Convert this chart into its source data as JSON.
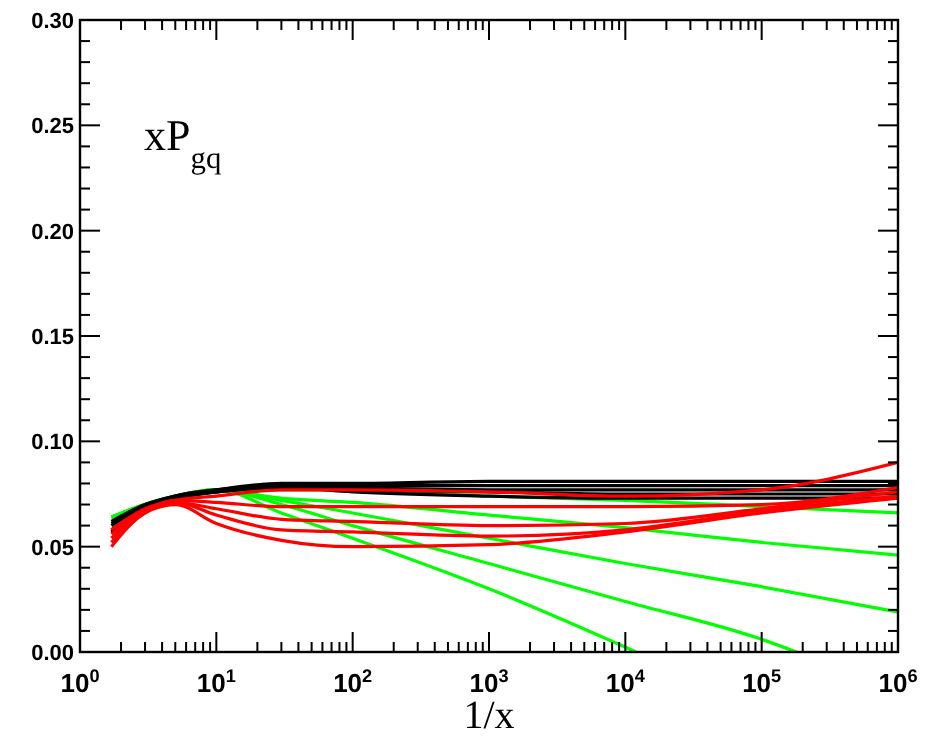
{
  "chart_data": {
    "type": "line",
    "xlabel": "1/x",
    "annotations": [
      "xP$_{gq}$"
    ],
    "log": "x",
    "grid": false,
    "marker": "none",
    "line_style": "solid",
    "xlim": [
      1,
      1000000
    ],
    "ylim": [
      0,
      0.3
    ],
    "xticks": [
      {
        "value": 1,
        "label": "10$^{0}$"
      },
      {
        "value": 10,
        "label": "10$^{1}$"
      },
      {
        "value": 100,
        "label": "10$^{2}$"
      },
      {
        "value": 1000,
        "label": "10$^{3}$"
      },
      {
        "value": 10000,
        "label": "10$^{4}$"
      },
      {
        "value": 100000,
        "label": "10$^{5}$"
      },
      {
        "value": 1000000,
        "label": "10$^{6}$"
      },
      {
        "value": 2,
        "label": null
      },
      {
        "value": 3,
        "label": null
      },
      {
        "value": 4,
        "label": null
      },
      {
        "value": 5,
        "label": null
      },
      {
        "value": 6,
        "label": null
      },
      {
        "value": 7,
        "label": null
      },
      {
        "value": 8,
        "label": null
      },
      {
        "value": 9,
        "label": null
      },
      {
        "value": 20,
        "label": null
      },
      {
        "value": 30,
        "label": null
      },
      {
        "value": 40,
        "label": null
      },
      {
        "value": 50,
        "label": null
      },
      {
        "value": 60,
        "label": null
      },
      {
        "value": 70,
        "label": null
      },
      {
        "value": 80,
        "label": null
      },
      {
        "value": 90,
        "label": null
      },
      {
        "value": 200,
        "label": null
      },
      {
        "value": 300,
        "label": null
      },
      {
        "value": 400,
        "label": null
      },
      {
        "value": 500,
        "label": null
      },
      {
        "value": 600,
        "label": null
      },
      {
        "value": 700,
        "label": null
      },
      {
        "value": 800,
        "label": null
      },
      {
        "value": 900,
        "label": null
      },
      {
        "value": 2000,
        "label": null
      },
      {
        "value": 3000,
        "label": null
      },
      {
        "value": 4000,
        "label": null
      },
      {
        "value": 5000,
        "label": null
      },
      {
        "value": 6000,
        "label": null
      },
      {
        "value": 7000,
        "label": null
      },
      {
        "value": 8000,
        "label": null
      },
      {
        "value": 9000,
        "label": null
      },
      {
        "value": 20000,
        "label": null
      },
      {
        "value": 30000,
        "label": null
      },
      {
        "value": 40000,
        "label": null
      },
      {
        "value": 50000,
        "label": null
      },
      {
        "value": 60000,
        "label": null
      },
      {
        "value": 70000,
        "label": null
      },
      {
        "value": 80000,
        "label": null
      },
      {
        "value": 90000,
        "label": null
      },
      {
        "value": 200000,
        "label": null
      },
      {
        "value": 300000,
        "label": null
      },
      {
        "value": 400000,
        "label": null
      },
      {
        "value": 500000,
        "label": null
      },
      {
        "value": 600000,
        "label": null
      },
      {
        "value": 700000,
        "label": null
      },
      {
        "value": 800000,
        "label": null
      },
      {
        "value": 900000,
        "label": null
      }
    ],
    "yticks": [
      {
        "value": 0,
        "label": "0.00"
      },
      {
        "value": 0.05,
        "label": "0.05"
      },
      {
        "value": 0.1,
        "label": "0.10"
      },
      {
        "value": 0.15,
        "label": "0.15"
      },
      {
        "value": 0.2,
        "label": "0.20"
      },
      {
        "value": 0.25,
        "label": "0.25"
      },
      {
        "value": 0.3,
        "label": "0.30"
      },
      {
        "value": 0.01,
        "label": null
      },
      {
        "value": 0.02,
        "label": null
      },
      {
        "value": 0.03,
        "label": null
      },
      {
        "value": 0.04,
        "label": null
      },
      {
        "value": 0.06,
        "label": null
      },
      {
        "value": 0.07,
        "label": null
      },
      {
        "value": 0.08,
        "label": null
      },
      {
        "value": 0.09,
        "label": null
      },
      {
        "value": 0.11,
        "label": null
      },
      {
        "value": 0.12,
        "label": null
      },
      {
        "value": 0.13,
        "label": null
      },
      {
        "value": 0.14,
        "label": null
      },
      {
        "value": 0.16,
        "label": null
      },
      {
        "value": 0.17,
        "label": null
      },
      {
        "value": 0.18,
        "label": null
      },
      {
        "value": 0.19,
        "label": null
      },
      {
        "value": 0.21,
        "label": null
      },
      {
        "value": 0.22,
        "label": null
      },
      {
        "value": 0.23,
        "label": null
      },
      {
        "value": 0.24,
        "label": null
      },
      {
        "value": 0.26,
        "label": null
      },
      {
        "value": 0.27,
        "label": null
      },
      {
        "value": 0.28,
        "label": null
      },
      {
        "value": 0.29,
        "label": null
      }
    ],
    "x": [
      1.7,
      3,
      5,
      10,
      30,
      100,
      1000,
      10000,
      100000,
      1000000
    ],
    "series": [
      {
        "color": "#00ff00",
        "values": [
          0.064,
          0.07,
          0.074,
          0.077,
          0.077,
          0.077,
          0.074,
          0.072,
          0.069,
          0.066
        ]
      },
      {
        "color": "#00ff00",
        "values": [
          0.064,
          0.07,
          0.074,
          0.077,
          0.073,
          0.071,
          0.065,
          0.059,
          0.052,
          0.046
        ]
      },
      {
        "color": "#00ff00",
        "values": [
          0.064,
          0.07,
          0.074,
          0.077,
          0.072,
          0.066,
          0.054,
          0.042,
          0.031,
          0.019
        ]
      },
      {
        "color": "#00ff00",
        "x": [
          1.7,
          3,
          5,
          10,
          30,
          100,
          1000,
          10000,
          100000,
          180000
        ],
        "values": [
          0.064,
          0.07,
          0.074,
          0.077,
          0.07,
          0.06,
          0.042,
          0.024,
          0.006,
          0
        ]
      },
      {
        "color": "#00ff00",
        "x": [
          1.7,
          3,
          5,
          10,
          30,
          100,
          1000,
          12000
        ],
        "values": [
          0.064,
          0.07,
          0.074,
          0.077,
          0.066,
          0.054,
          0.03,
          0
        ]
      },
      {
        "color": "#000000",
        "values": [
          0.062,
          0.07,
          0.074,
          0.077,
          0.08,
          0.08,
          0.081,
          0.081,
          0.081,
          0.081
        ]
      },
      {
        "color": "#000000",
        "values": [
          0.061,
          0.069,
          0.074,
          0.077,
          0.079,
          0.079,
          0.079,
          0.079,
          0.079,
          0.079
        ]
      },
      {
        "color": "#000000",
        "values": [
          0.06,
          0.069,
          0.073,
          0.076,
          0.079,
          0.078,
          0.077,
          0.077,
          0.077,
          0.077
        ]
      },
      {
        "color": "#000000",
        "values": [
          0.058,
          0.068,
          0.073,
          0.076,
          0.078,
          0.077,
          0.076,
          0.075,
          0.075,
          0.075
        ]
      },
      {
        "color": "#000000",
        "values": [
          0.057,
          0.068,
          0.073,
          0.076,
          0.078,
          0.076,
          0.074,
          0.073,
          0.073,
          0.073
        ]
      },
      {
        "color": "#ff0000",
        "values": [
          0.05,
          0.066,
          0.07,
          0.061,
          0.053,
          0.05,
          0.051,
          0.057,
          0.066,
          0.073
        ]
      },
      {
        "color": "#ff0000",
        "values": [
          0.052,
          0.066,
          0.071,
          0.065,
          0.058,
          0.057,
          0.055,
          0.058,
          0.067,
          0.074
        ]
      },
      {
        "color": "#ff0000",
        "values": [
          0.054,
          0.067,
          0.071,
          0.068,
          0.063,
          0.062,
          0.06,
          0.061,
          0.068,
          0.076
        ]
      },
      {
        "color": "#ff0000",
        "values": [
          0.056,
          0.067,
          0.072,
          0.071,
          0.069,
          0.069,
          0.069,
          0.069,
          0.07,
          0.078
        ]
      },
      {
        "color": "#ff0000",
        "values": [
          0.058,
          0.068,
          0.072,
          0.074,
          0.077,
          0.077,
          0.076,
          0.074,
          0.077,
          0.09
        ]
      }
    ]
  }
}
